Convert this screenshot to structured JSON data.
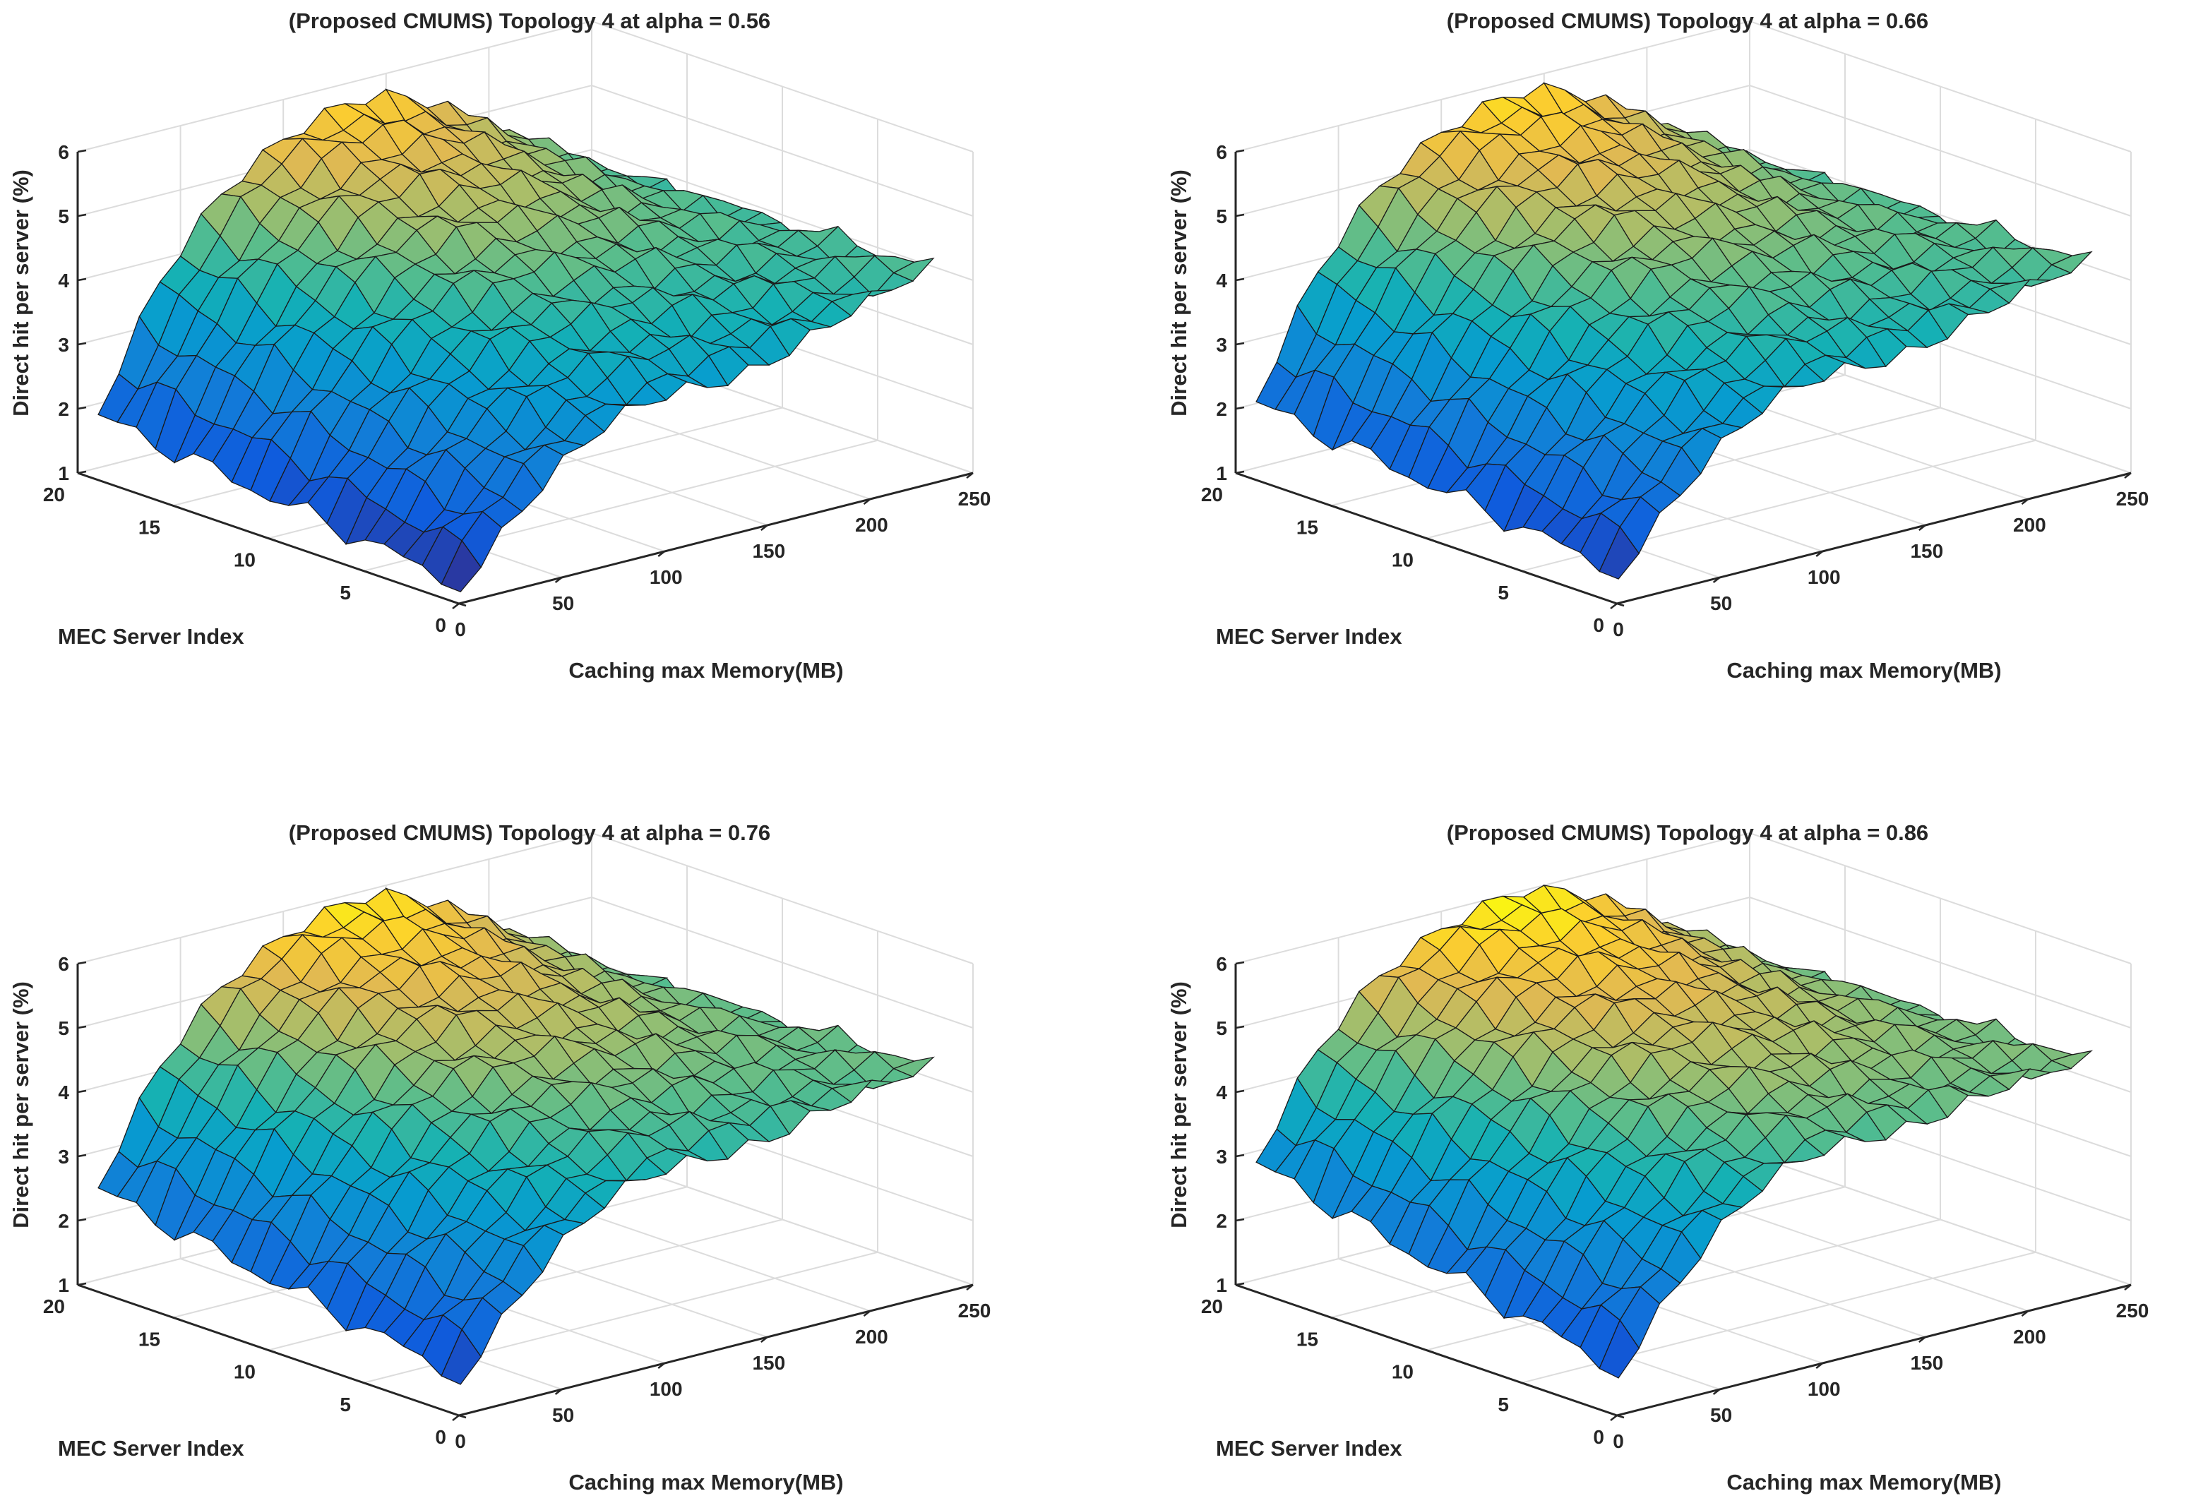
{
  "figure": {
    "panels": 4
  },
  "chart_data": [
    {
      "type": "surface3d",
      "title": "(Proposed CMUMS) Topology 4 at alpha = 0.56",
      "xlabel": "Caching max Memory(MB)",
      "ylabel": "MEC Server Index",
      "zlabel": "Direct hit per server (%)",
      "alpha": 0.56,
      "xlim": [
        0,
        250
      ],
      "ylim": [
        0,
        20
      ],
      "zlim": [
        1,
        6
      ],
      "xticks": [
        "0",
        "50",
        "100",
        "150",
        "200",
        "250"
      ],
      "yticks": [
        "0",
        "5",
        "10",
        "15",
        "20"
      ],
      "zticks": [
        "1",
        "2",
        "3",
        "4",
        "5",
        "6"
      ],
      "colormap": "parula",
      "surface": {
        "x_range": [
          10,
          240
        ],
        "x_count": 24,
        "y_range": [
          1,
          20
        ],
        "y_count": 20,
        "z_back_low": 1.8,
        "z_front_low": 1.1,
        "z_high_at_y20": 5.7,
        "z_high_at_y1": 3.3,
        "z_far_edge_y20": 3.9,
        "z_far_edge_y1": 4.2,
        "plateau_slope": 0.05
      }
    },
    {
      "type": "surface3d",
      "title": "(Proposed CMUMS) Topology 4 at alpha = 0.66",
      "xlabel": "Caching max Memory(MB)",
      "ylabel": "MEC Server Index",
      "zlabel": "Direct hit per server (%)",
      "alpha": 0.66,
      "xlim": [
        0,
        250
      ],
      "ylim": [
        0,
        20
      ],
      "zlim": [
        1,
        6
      ],
      "xticks": [
        "0",
        "50",
        "100",
        "150",
        "200",
        "250"
      ],
      "yticks": [
        "0",
        "5",
        "10",
        "15",
        "20"
      ],
      "zticks": [
        "1",
        "2",
        "3",
        "4",
        "5",
        "6"
      ],
      "colormap": "parula",
      "surface": {
        "x_range": [
          10,
          240
        ],
        "x_count": 24,
        "y_range": [
          1,
          20
        ],
        "y_count": 20,
        "z_back_low": 2.0,
        "z_front_low": 1.3,
        "z_high_at_y20": 5.8,
        "z_high_at_y1": 3.6,
        "z_far_edge_y20": 4.0,
        "z_far_edge_y1": 4.3,
        "plateau_slope": 0.05
      }
    },
    {
      "type": "surface3d",
      "title": "(Proposed CMUMS) Topology 4 at alpha = 0.76",
      "xlabel": "Caching max Memory(MB)",
      "ylabel": "MEC Server Index",
      "zlabel": "Direct hit per server (%)",
      "alpha": 0.76,
      "xlim": [
        0,
        250
      ],
      "ylim": [
        0,
        20
      ],
      "zlim": [
        1,
        6
      ],
      "xticks": [
        "0",
        "50",
        "100",
        "150",
        "200",
        "250"
      ],
      "yticks": [
        "0",
        "5",
        "10",
        "15",
        "20"
      ],
      "zticks": [
        "1",
        "2",
        "3",
        "4",
        "5",
        "6"
      ],
      "colormap": "parula",
      "surface": {
        "x_range": [
          10,
          240
        ],
        "x_count": 24,
        "y_range": [
          1,
          20
        ],
        "y_count": 20,
        "z_back_low": 2.4,
        "z_front_low": 1.4,
        "z_high_at_y20": 5.9,
        "z_high_at_y1": 3.9,
        "z_far_edge_y20": 4.1,
        "z_far_edge_y1": 4.4,
        "plateau_slope": 0.05
      }
    },
    {
      "type": "surface3d",
      "title": "(Proposed CMUMS) Topology 4 at alpha = 0.86",
      "xlabel": "Caching max Memory(MB)",
      "ylabel": "MEC Server Index",
      "zlabel": "Direct hit per server (%)",
      "alpha": 0.86,
      "xlim": [
        0,
        250
      ],
      "ylim": [
        0,
        20
      ],
      "zlim": [
        1,
        6
      ],
      "xticks": [
        "0",
        "50",
        "100",
        "150",
        "200",
        "250"
      ],
      "yticks": [
        "0",
        "5",
        "10",
        "15",
        "20"
      ],
      "zticks": [
        "1",
        "2",
        "3",
        "4",
        "5",
        "6"
      ],
      "colormap": "parula",
      "surface": {
        "x_range": [
          10,
          240
        ],
        "x_count": 24,
        "y_range": [
          1,
          20
        ],
        "y_count": 20,
        "z_back_low": 2.8,
        "z_front_low": 1.5,
        "z_high_at_y20": 6.0,
        "z_high_at_y1": 4.2,
        "z_far_edge_y20": 4.2,
        "z_far_edge_y1": 4.5,
        "plateau_slope": 0.05
      }
    }
  ]
}
